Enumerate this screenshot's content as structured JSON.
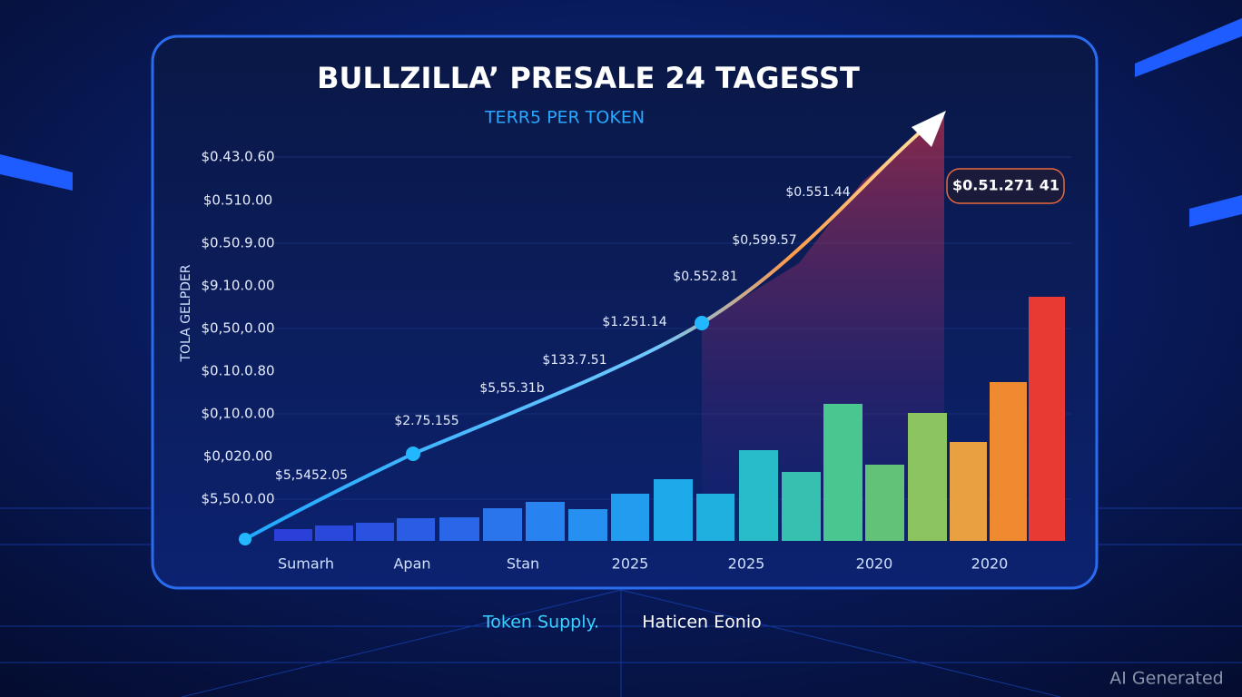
{
  "title": "BULLZILLA’ PRESALE 24 TAGESST",
  "subtitle": "TERR5 PER TOKEN",
  "y_axis_label": "TOLA GELPDER",
  "y_labels": [
    "$0.43.0.60",
    "$0.510.00",
    "$0.50.9.00",
    "$9.10.0.00",
    "$0,50,0.00",
    "$0.10.0.80",
    "$0,10.0.00",
    "$0,020.00",
    "$5,50.0.00"
  ],
  "point_labels": [
    "$5,5452.05",
    "$2.75.155",
    "$5,55.31b",
    "$133.7.51",
    "$1.251.14",
    "$0.552.81",
    "$0,599.57",
    "$0.551.44"
  ],
  "callout": "$0.51.271 41",
  "x_labels": [
    "Sumarh",
    "Apan",
    "Stan",
    "2025",
    "2025",
    "2020",
    "2020"
  ],
  "footer": {
    "left": "Token Supply.",
    "right": "Haticen Eonio"
  },
  "watermark": "AI Generated"
}
